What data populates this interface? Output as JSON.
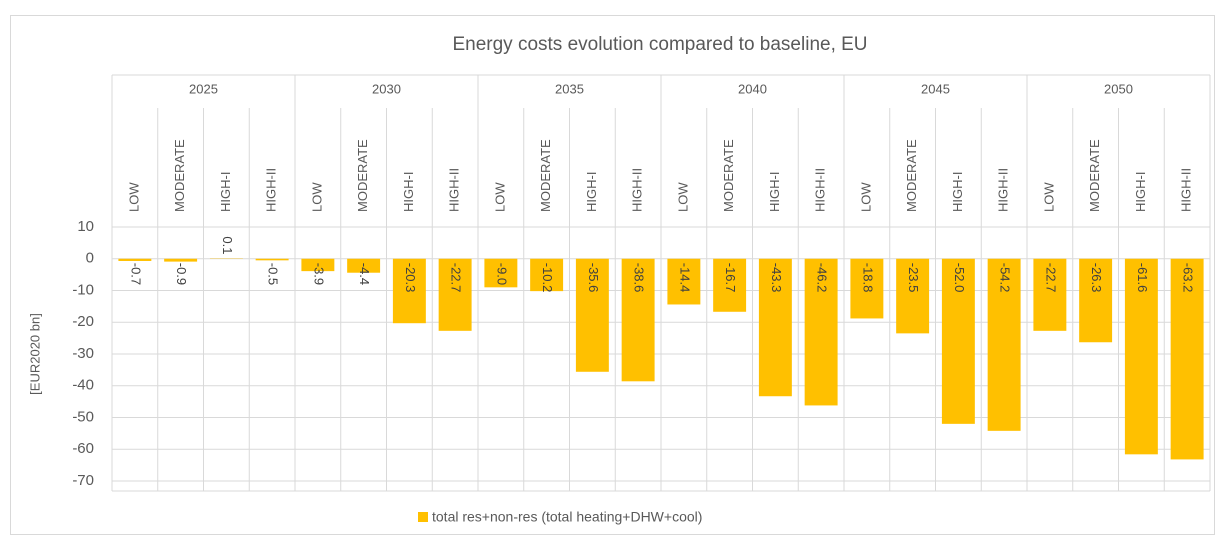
{
  "chart_data": {
    "type": "bar",
    "title": "Energy costs evolution compared to baseline, EU",
    "y_label": "[EUR2020 bn]",
    "groups": [
      "2025",
      "2030",
      "2035",
      "2040",
      "2045",
      "2050"
    ],
    "categories": [
      "LOW",
      "MODERATE",
      "HIGH-I",
      "HIGH-II",
      "LOW",
      "MODERATE",
      "HIGH-I",
      "HIGH-II",
      "LOW",
      "MODERATE",
      "HIGH-I",
      "HIGH-II",
      "LOW",
      "MODERATE",
      "HIGH-I",
      "HIGH-II",
      "LOW",
      "MODERATE",
      "HIGH-I",
      "HIGH-II",
      "LOW",
      "MODERATE",
      "HIGH-I",
      "HIGH-II"
    ],
    "series": [
      {
        "name": "total res+non-res (total heating+DHW+cool)",
        "color": "#ffc000",
        "values": [
          -0.7,
          -0.9,
          0.1,
          -0.5,
          -3.9,
          -4.4,
          -20.3,
          -22.7,
          -9.0,
          -10.2,
          -35.6,
          -38.6,
          -14.4,
          -16.7,
          -43.3,
          -46.2,
          -18.8,
          -23.5,
          -52.0,
          -54.2,
          -22.7,
          -26.3,
          -61.6,
          -63.2
        ],
        "value_labels": [
          "-0.7",
          "-0.9",
          "0.1",
          "-0.5",
          "-3.9",
          "-4.4",
          "-20.3",
          "-22.7",
          "-9.0",
          "-10.2",
          "-35.6",
          "-38.6",
          "-14.4",
          "-16.7",
          "-43.3",
          "-46.2",
          "-18.8",
          "-23.5",
          "-52.0",
          "-54.2",
          "-22.7",
          "-26.3",
          "-61.6",
          "-63.2"
        ]
      }
    ],
    "ylim": [
      -70,
      10
    ],
    "yticks": [
      -70,
      -60,
      -50,
      -40,
      -30,
      -20,
      -10,
      0,
      10
    ],
    "grid": true,
    "legend": "bottom"
  }
}
